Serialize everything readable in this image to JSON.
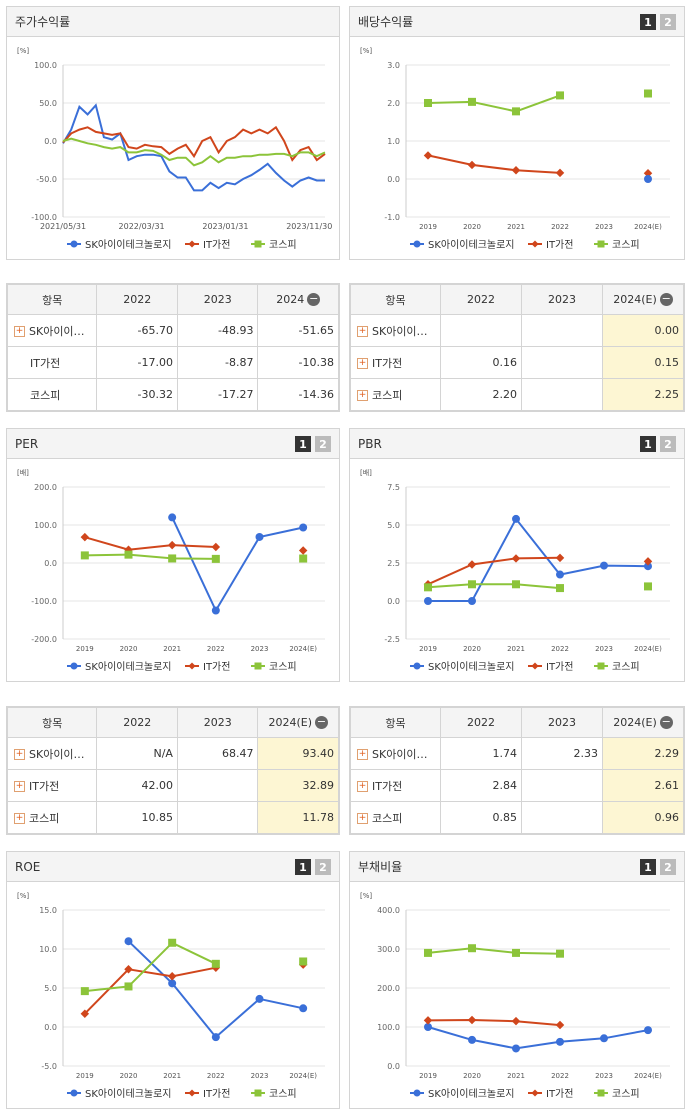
{
  "colors": {
    "blue": "#3a6fd8",
    "red": "#d0461c",
    "green": "#8cc43a",
    "grid": "#e6e6e6"
  },
  "legend": [
    "SK아이이테크놀로지",
    "IT가전",
    "코스피"
  ],
  "pager": [
    "1",
    "2"
  ],
  "tables": {
    "returns": {
      "headers": [
        "항목",
        "2022",
        "2023",
        "2024"
      ],
      "rows": [
        {
          "name": "SK아이이…",
          "plus": true,
          "vals": [
            "-65.70",
            "-48.93",
            "-51.65"
          ]
        },
        {
          "name": "IT가전",
          "plus": false,
          "vals": [
            "-17.00",
            "-8.87",
            "-10.38"
          ]
        },
        {
          "name": "코스피",
          "plus": false,
          "vals": [
            "-30.32",
            "-17.27",
            "-14.36"
          ]
        }
      ]
    },
    "dividend": {
      "headers": [
        "항목",
        "2022",
        "2023",
        "2024(E)"
      ],
      "rows": [
        {
          "name": "SK아이이…",
          "plus": true,
          "vals": [
            "",
            "",
            "0.00"
          ]
        },
        {
          "name": "IT가전",
          "plus": true,
          "vals": [
            "0.16",
            "",
            "0.15"
          ]
        },
        {
          "name": "코스피",
          "plus": true,
          "vals": [
            "2.20",
            "",
            "2.25"
          ]
        }
      ]
    },
    "per": {
      "headers": [
        "항목",
        "2022",
        "2023",
        "2024(E)"
      ],
      "rows": [
        {
          "name": "SK아이이…",
          "plus": true,
          "vals": [
            "N/A",
            "68.47",
            "93.40"
          ]
        },
        {
          "name": "IT가전",
          "plus": true,
          "vals": [
            "42.00",
            "",
            "32.89"
          ]
        },
        {
          "name": "코스피",
          "plus": true,
          "vals": [
            "10.85",
            "",
            "11.78"
          ]
        }
      ]
    },
    "pbr": {
      "headers": [
        "항목",
        "2022",
        "2023",
        "2024(E)"
      ],
      "rows": [
        {
          "name": "SK아이이…",
          "plus": true,
          "vals": [
            "1.74",
            "2.33",
            "2.29"
          ]
        },
        {
          "name": "IT가전",
          "plus": true,
          "vals": [
            "2.84",
            "",
            "2.61"
          ]
        },
        {
          "name": "코스피",
          "plus": true,
          "vals": [
            "0.85",
            "",
            "0.96"
          ]
        }
      ]
    }
  },
  "chart_data": [
    {
      "key": "returns",
      "title": "주가수익률",
      "type": "line",
      "unit": "[%]",
      "ylim": [
        -100,
        100
      ],
      "yticks": [
        "100.0",
        "50.0",
        "0.0",
        "-50.0",
        "-100.0"
      ],
      "x_labels": [
        "2021/05/31",
        "2022/03/31",
        "2023/01/31",
        "2023/11/30"
      ],
      "series": [
        {
          "name": "SK아이이테크놀로지",
          "color": "blue",
          "values": [
            -3,
            15,
            45,
            35,
            47,
            5,
            2,
            10,
            -25,
            -20,
            -18,
            -18,
            -20,
            -40,
            -48,
            -48,
            -65,
            -65,
            -55,
            -62,
            -55,
            -57,
            -50,
            -45,
            -38,
            -30,
            -42,
            -52,
            -60,
            -52,
            -48,
            -52,
            -52
          ]
        },
        {
          "name": "IT가전",
          "color": "red",
          "values": [
            -2,
            10,
            15,
            18,
            12,
            10,
            8,
            10,
            -8,
            -10,
            -5,
            -7,
            -8,
            -17,
            -10,
            -5,
            -20,
            0,
            5,
            -15,
            0,
            5,
            15,
            10,
            15,
            10,
            18,
            0,
            -25,
            -12,
            -8,
            -25,
            -17
          ]
        },
        {
          "name": "코스피",
          "color": "green",
          "values": [
            0,
            3,
            0,
            -3,
            -5,
            -8,
            -10,
            -8,
            -15,
            -15,
            -12,
            -13,
            -18,
            -25,
            -22,
            -22,
            -32,
            -28,
            -20,
            -28,
            -22,
            -22,
            -20,
            -20,
            -18,
            -18,
            -17,
            -17,
            -20,
            -15,
            -15,
            -20,
            -15
          ]
        }
      ]
    },
    {
      "key": "dividend",
      "title": "배당수익률",
      "type": "line",
      "unit": "[%]",
      "ylim": [
        -1,
        3
      ],
      "yticks": [
        "3.0",
        "2.0",
        "1.0",
        "0.0",
        "-1.0"
      ],
      "categories": [
        "2019",
        "2020",
        "2021",
        "2022",
        "2023",
        "2024(E)"
      ],
      "series": [
        {
          "name": "IT가전",
          "color": "red",
          "values": [
            0.62,
            0.37,
            0.23,
            0.16,
            null,
            0.15
          ]
        },
        {
          "name": "코스피",
          "color": "green",
          "values": [
            2.0,
            2.03,
            1.78,
            2.2,
            null,
            2.25
          ]
        },
        {
          "name": "SK아이이테크놀로지",
          "color": "blue",
          "values": [
            null,
            null,
            null,
            null,
            null,
            0.0
          ]
        }
      ]
    },
    {
      "key": "per",
      "title": "PER",
      "type": "line",
      "unit": "[배]",
      "ylim": [
        -200,
        200
      ],
      "yticks": [
        "200.0",
        "100.0",
        "0.0",
        "-100.0",
        "-200.0"
      ],
      "categories": [
        "2019",
        "2020",
        "2021",
        "2022",
        "2023",
        "2024(E)"
      ],
      "series": [
        {
          "name": "SK아이이테크놀로지",
          "color": "blue",
          "values": [
            null,
            null,
            120,
            -125,
            68.47,
            93.4
          ]
        },
        {
          "name": "IT가전",
          "color": "red",
          "values": [
            68,
            35,
            47,
            42,
            null,
            32.89
          ]
        },
        {
          "name": "코스피",
          "color": "green",
          "values": [
            20,
            22,
            12,
            10.85,
            null,
            11.78
          ]
        }
      ]
    },
    {
      "key": "pbr",
      "title": "PBR",
      "type": "line",
      "unit": "[배]",
      "ylim": [
        -2.5,
        7.5
      ],
      "yticks": [
        "7.5",
        "5.0",
        "2.5",
        "0.0",
        "-2.5"
      ],
      "categories": [
        "2019",
        "2020",
        "2021",
        "2022",
        "2023",
        "2024(E)"
      ],
      "series": [
        {
          "name": "SK아이이테크놀로지",
          "color": "blue",
          "values": [
            0,
            0,
            5.4,
            1.74,
            2.33,
            2.29
          ]
        },
        {
          "name": "IT가전",
          "color": "red",
          "values": [
            1.1,
            2.4,
            2.8,
            2.84,
            null,
            2.61
          ]
        },
        {
          "name": "코스피",
          "color": "green",
          "values": [
            0.9,
            1.1,
            1.1,
            0.85,
            null,
            0.96
          ]
        }
      ]
    },
    {
      "key": "roe",
      "title": "ROE",
      "type": "line",
      "unit": "[%]",
      "ylim": [
        -5,
        15
      ],
      "yticks": [
        "15.0",
        "10.0",
        "5.0",
        "0.0",
        "-5.0"
      ],
      "categories": [
        "2019",
        "2020",
        "2021",
        "2022",
        "2023",
        "2024(E)"
      ],
      "series": [
        {
          "name": "SK아이이테크놀로지",
          "color": "blue",
          "values": [
            null,
            11.0,
            5.6,
            -1.3,
            3.6,
            2.4
          ]
        },
        {
          "name": "IT가전",
          "color": "red",
          "values": [
            1.7,
            7.4,
            6.5,
            7.6,
            null,
            8.0
          ]
        },
        {
          "name": "코스피",
          "color": "green",
          "values": [
            4.6,
            5.2,
            10.8,
            8.1,
            null,
            8.4
          ]
        }
      ]
    },
    {
      "key": "debt",
      "title": "부채비율",
      "type": "line",
      "unit": "[%]",
      "ylim": [
        0,
        400
      ],
      "yticks": [
        "400.0",
        "300.0",
        "200.0",
        "100.0",
        "0.0"
      ],
      "categories": [
        "2019",
        "2020",
        "2021",
        "2022",
        "2023",
        "2024(E)"
      ],
      "series": [
        {
          "name": "SK아이이테크놀로지",
          "color": "blue",
          "values": [
            100,
            67,
            45,
            62,
            71,
            92
          ]
        },
        {
          "name": "IT가전",
          "color": "red",
          "values": [
            117,
            118,
            115,
            105,
            null,
            null
          ]
        },
        {
          "name": "코스피",
          "color": "green",
          "values": [
            290,
            302,
            290,
            288,
            null,
            null
          ]
        }
      ]
    }
  ]
}
